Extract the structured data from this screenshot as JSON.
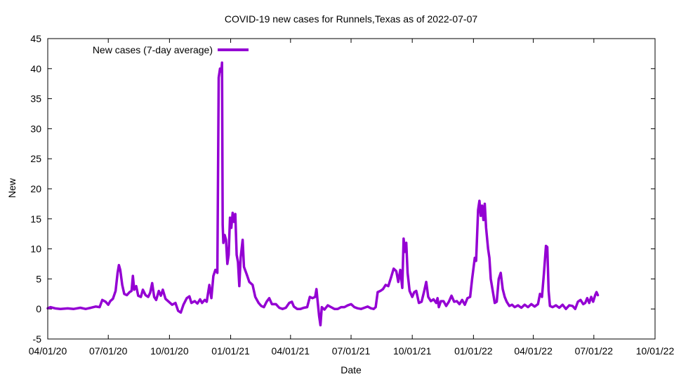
{
  "chart_data": {
    "type": "line",
    "title": "COVID-19 new cases for Runnels,Texas as of 2022-07-07",
    "xlabel": "Date",
    "ylabel": "New",
    "xlim": [
      "2020-04-01",
      "2022-10-01"
    ],
    "ylim": [
      -5,
      45
    ],
    "x_ticks": [
      "04/01/20",
      "07/01/20",
      "10/01/20",
      "01/01/21",
      "04/01/21",
      "07/01/21",
      "10/01/21",
      "01/01/22",
      "04/01/22",
      "07/01/22",
      "10/01/22"
    ],
    "y_ticks": [
      -5,
      0,
      5,
      10,
      15,
      20,
      25,
      30,
      35,
      40,
      45
    ],
    "grid": false,
    "legend": "top-left",
    "series": [
      {
        "name": "New cases (7-day average)",
        "color": "#9400d3",
        "points": [
          [
            "2020-04-01",
            0.1
          ],
          [
            "2020-04-05",
            0.3
          ],
          [
            "2020-04-12",
            0.1
          ],
          [
            "2020-04-20",
            0.0
          ],
          [
            "2020-05-01",
            0.1
          ],
          [
            "2020-05-10",
            0.0
          ],
          [
            "2020-05-20",
            0.2
          ],
          [
            "2020-05-28",
            0.0
          ],
          [
            "2020-06-05",
            0.2
          ],
          [
            "2020-06-12",
            0.4
          ],
          [
            "2020-06-18",
            0.3
          ],
          [
            "2020-06-22",
            1.5
          ],
          [
            "2020-06-27",
            1.2
          ],
          [
            "2020-07-01",
            0.7
          ],
          [
            "2020-07-04",
            1.3
          ],
          [
            "2020-07-08",
            1.7
          ],
          [
            "2020-07-12",
            3.0
          ],
          [
            "2020-07-15",
            6.0
          ],
          [
            "2020-07-17",
            7.3
          ],
          [
            "2020-07-19",
            6.5
          ],
          [
            "2020-07-22",
            4.0
          ],
          [
            "2020-07-25",
            2.5
          ],
          [
            "2020-07-29",
            2.3
          ],
          [
            "2020-08-02",
            2.8
          ],
          [
            "2020-08-05",
            3.0
          ],
          [
            "2020-08-07",
            5.5
          ],
          [
            "2020-08-09",
            3.2
          ],
          [
            "2020-08-12",
            3.8
          ],
          [
            "2020-08-15",
            2.2
          ],
          [
            "2020-08-19",
            2.0
          ],
          [
            "2020-08-22",
            3.2
          ],
          [
            "2020-08-26",
            2.3
          ],
          [
            "2020-08-30",
            2.0
          ],
          [
            "2020-09-02",
            2.7
          ],
          [
            "2020-09-05",
            4.3
          ],
          [
            "2020-09-08",
            2.0
          ],
          [
            "2020-09-11",
            1.5
          ],
          [
            "2020-09-15",
            3.0
          ],
          [
            "2020-09-18",
            2.2
          ],
          [
            "2020-09-21",
            3.2
          ],
          [
            "2020-09-25",
            1.7
          ],
          [
            "2020-09-30",
            1.2
          ],
          [
            "2020-10-05",
            0.7
          ],
          [
            "2020-10-10",
            1.0
          ],
          [
            "2020-10-14",
            -0.3
          ],
          [
            "2020-10-18",
            -0.6
          ],
          [
            "2020-10-22",
            0.7
          ],
          [
            "2020-10-27",
            1.8
          ],
          [
            "2020-10-31",
            2.1
          ],
          [
            "2020-11-03",
            1.0
          ],
          [
            "2020-11-08",
            1.3
          ],
          [
            "2020-11-12",
            0.9
          ],
          [
            "2020-11-16",
            1.6
          ],
          [
            "2020-11-19",
            1.0
          ],
          [
            "2020-11-23",
            1.5
          ],
          [
            "2020-11-26",
            1.2
          ],
          [
            "2020-11-30",
            4.0
          ],
          [
            "2020-12-03",
            1.8
          ],
          [
            "2020-12-06",
            5.5
          ],
          [
            "2020-12-09",
            6.5
          ],
          [
            "2020-12-12",
            6.0
          ],
          [
            "2020-12-14",
            38.5
          ],
          [
            "2020-12-16",
            40.0
          ],
          [
            "2020-12-18",
            39.5
          ],
          [
            "2020-12-19",
            41.0
          ],
          [
            "2020-12-20",
            14.0
          ],
          [
            "2020-12-21",
            11.0
          ],
          [
            "2020-12-23",
            12.3
          ],
          [
            "2020-12-25",
            11.5
          ],
          [
            "2020-12-27",
            7.5
          ],
          [
            "2020-12-29",
            9.0
          ],
          [
            "2020-12-31",
            15.2
          ],
          [
            "2021-01-02",
            13.5
          ],
          [
            "2021-01-04",
            16.0
          ],
          [
            "2021-01-06",
            14.5
          ],
          [
            "2021-01-08",
            15.8
          ],
          [
            "2021-01-10",
            9.0
          ],
          [
            "2021-01-12",
            7.8
          ],
          [
            "2021-01-14",
            3.8
          ],
          [
            "2021-01-16",
            8.5
          ],
          [
            "2021-01-19",
            11.5
          ],
          [
            "2021-01-21",
            7.0
          ],
          [
            "2021-01-25",
            5.8
          ],
          [
            "2021-01-29",
            4.5
          ],
          [
            "2021-02-03",
            4.0
          ],
          [
            "2021-02-07",
            2.0
          ],
          [
            "2021-02-12",
            1.0
          ],
          [
            "2021-02-16",
            0.5
          ],
          [
            "2021-02-20",
            0.3
          ],
          [
            "2021-02-24",
            1.2
          ],
          [
            "2021-02-28",
            1.8
          ],
          [
            "2021-03-04",
            0.8
          ],
          [
            "2021-03-10",
            0.8
          ],
          [
            "2021-03-15",
            0.2
          ],
          [
            "2021-03-20",
            0.0
          ],
          [
            "2021-03-25",
            0.2
          ],
          [
            "2021-03-30",
            1.0
          ],
          [
            "2021-04-03",
            1.2
          ],
          [
            "2021-04-06",
            0.4
          ],
          [
            "2021-04-11",
            0.0
          ],
          [
            "2021-04-16",
            0.0
          ],
          [
            "2021-04-21",
            0.2
          ],
          [
            "2021-04-26",
            0.3
          ],
          [
            "2021-04-30",
            2.0
          ],
          [
            "2021-05-04",
            1.8
          ],
          [
            "2021-05-08",
            2.0
          ],
          [
            "2021-05-10",
            3.3
          ],
          [
            "2021-05-12",
            1.0
          ],
          [
            "2021-05-14",
            -1.2
          ],
          [
            "2021-05-16",
            -2.7
          ],
          [
            "2021-05-18",
            0.3
          ],
          [
            "2021-05-22",
            -0.1
          ],
          [
            "2021-05-27",
            0.6
          ],
          [
            "2021-06-01",
            0.3
          ],
          [
            "2021-06-06",
            0.0
          ],
          [
            "2021-06-11",
            0.0
          ],
          [
            "2021-06-16",
            0.3
          ],
          [
            "2021-06-21",
            0.3
          ],
          [
            "2021-06-26",
            0.6
          ],
          [
            "2021-07-01",
            0.8
          ],
          [
            "2021-07-06",
            0.3
          ],
          [
            "2021-07-11",
            0.1
          ],
          [
            "2021-07-16",
            0.0
          ],
          [
            "2021-07-21",
            0.2
          ],
          [
            "2021-07-26",
            0.4
          ],
          [
            "2021-07-31",
            0.1
          ],
          [
            "2021-08-04",
            0.0
          ],
          [
            "2021-08-07",
            0.3
          ],
          [
            "2021-08-10",
            2.8
          ],
          [
            "2021-08-14",
            3.0
          ],
          [
            "2021-08-18",
            3.3
          ],
          [
            "2021-08-22",
            4.0
          ],
          [
            "2021-08-26",
            3.8
          ],
          [
            "2021-08-30",
            5.2
          ],
          [
            "2021-09-03",
            6.7
          ],
          [
            "2021-09-07",
            6.3
          ],
          [
            "2021-09-10",
            4.5
          ],
          [
            "2021-09-13",
            6.5
          ],
          [
            "2021-09-16",
            3.5
          ],
          [
            "2021-09-18",
            11.7
          ],
          [
            "2021-09-20",
            9.5
          ],
          [
            "2021-09-22",
            11.0
          ],
          [
            "2021-09-24",
            6.0
          ],
          [
            "2021-09-27",
            3.0
          ],
          [
            "2021-10-01",
            2.0
          ],
          [
            "2021-10-04",
            2.8
          ],
          [
            "2021-10-07",
            3.0
          ],
          [
            "2021-10-11",
            1.0
          ],
          [
            "2021-10-15",
            1.2
          ],
          [
            "2021-10-19",
            3.0
          ],
          [
            "2021-10-22",
            4.5
          ],
          [
            "2021-10-25",
            2.0
          ],
          [
            "2021-10-29",
            1.3
          ],
          [
            "2021-11-02",
            1.6
          ],
          [
            "2021-11-06",
            1.0
          ],
          [
            "2021-11-08",
            1.8
          ],
          [
            "2021-11-10",
            0.3
          ],
          [
            "2021-11-13",
            1.3
          ],
          [
            "2021-11-17",
            1.3
          ],
          [
            "2021-11-21",
            0.5
          ],
          [
            "2021-11-25",
            1.2
          ],
          [
            "2021-11-29",
            2.2
          ],
          [
            "2021-12-03",
            1.2
          ],
          [
            "2021-12-07",
            1.3
          ],
          [
            "2021-12-11",
            0.8
          ],
          [
            "2021-12-15",
            1.5
          ],
          [
            "2021-12-19",
            0.7
          ],
          [
            "2021-12-23",
            1.8
          ],
          [
            "2021-12-27",
            2.0
          ],
          [
            "2021-12-30",
            5.0
          ],
          [
            "2022-01-03",
            8.5
          ],
          [
            "2022-01-05",
            8.0
          ],
          [
            "2022-01-08",
            16.5
          ],
          [
            "2022-01-10",
            18.0
          ],
          [
            "2022-01-12",
            15.5
          ],
          [
            "2022-01-14",
            17.2
          ],
          [
            "2022-01-16",
            14.8
          ],
          [
            "2022-01-18",
            17.5
          ],
          [
            "2022-01-20",
            13.5
          ],
          [
            "2022-01-23",
            10.0
          ],
          [
            "2022-01-25",
            8.5
          ],
          [
            "2022-01-27",
            5.0
          ],
          [
            "2022-01-30",
            3.0
          ],
          [
            "2022-02-02",
            1.0
          ],
          [
            "2022-02-05",
            1.2
          ],
          [
            "2022-02-08",
            5.0
          ],
          [
            "2022-02-11",
            6.0
          ],
          [
            "2022-02-14",
            3.3
          ],
          [
            "2022-02-17",
            2.0
          ],
          [
            "2022-02-20",
            1.2
          ],
          [
            "2022-02-24",
            0.5
          ],
          [
            "2022-02-28",
            0.7
          ],
          [
            "2022-03-04",
            0.3
          ],
          [
            "2022-03-09",
            0.6
          ],
          [
            "2022-03-14",
            0.2
          ],
          [
            "2022-03-19",
            0.7
          ],
          [
            "2022-03-24",
            0.3
          ],
          [
            "2022-03-29",
            0.8
          ],
          [
            "2022-04-03",
            0.4
          ],
          [
            "2022-04-08",
            0.8
          ],
          [
            "2022-04-11",
            2.5
          ],
          [
            "2022-04-14",
            2.0
          ],
          [
            "2022-04-17",
            6.0
          ],
          [
            "2022-04-20",
            10.5
          ],
          [
            "2022-04-22",
            10.3
          ],
          [
            "2022-04-24",
            3.0
          ],
          [
            "2022-04-26",
            0.5
          ],
          [
            "2022-04-30",
            0.3
          ],
          [
            "2022-05-05",
            0.6
          ],
          [
            "2022-05-10",
            0.2
          ],
          [
            "2022-05-15",
            0.7
          ],
          [
            "2022-05-20",
            0.0
          ],
          [
            "2022-05-25",
            0.6
          ],
          [
            "2022-05-30",
            0.5
          ],
          [
            "2022-06-03",
            0.0
          ],
          [
            "2022-06-07",
            1.2
          ],
          [
            "2022-06-11",
            1.5
          ],
          [
            "2022-06-15",
            0.8
          ],
          [
            "2022-06-18",
            1.0
          ],
          [
            "2022-06-21",
            1.8
          ],
          [
            "2022-06-24",
            1.0
          ],
          [
            "2022-06-27",
            2.0
          ],
          [
            "2022-06-30",
            1.2
          ],
          [
            "2022-07-03",
            2.3
          ],
          [
            "2022-07-05",
            2.8
          ],
          [
            "2022-07-07",
            2.3
          ]
        ]
      }
    ]
  }
}
